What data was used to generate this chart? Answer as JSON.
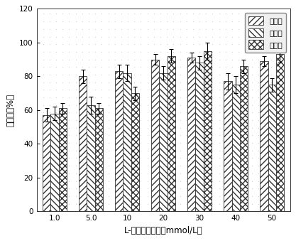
{
  "categories": [
    "1.0",
    "5.0",
    "10",
    "20",
    "30",
    "40",
    "50"
  ],
  "methylmercury": [
    57,
    80,
    83,
    90,
    91,
    77,
    89
  ],
  "ethylmercury": [
    58,
    63,
    82,
    82,
    88,
    75,
    75
  ],
  "inorganic": [
    61,
    61,
    70,
    92,
    95,
    86,
    93
  ],
  "methylmercury_err": [
    4,
    4,
    4,
    3,
    3,
    5,
    3
  ],
  "ethylmercury_err": [
    4,
    5,
    5,
    4,
    4,
    5,
    4
  ],
  "inorganic_err": [
    3,
    3,
    4,
    4,
    5,
    4,
    5
  ],
  "xlabel": "L-半胱氨酸浓度（mmol/L）",
  "ylabel": "回收率（%）",
  "ylim": [
    0,
    120
  ],
  "yticks": [
    0,
    20,
    40,
    60,
    80,
    100,
    120
  ],
  "legend_labels": [
    "甲基汞",
    "乙基汞",
    "无机汞"
  ],
  "hatch_methyl": "////",
  "hatch_ethyl": "\\\\\\\\",
  "hatch_inorganic": "xxxx",
  "bar_edgecolor": "#333333",
  "bar_facecolor": "#ffffff",
  "background_color": "#ffffff",
  "dot_color": "#cccccc",
  "bar_width": 0.22
}
